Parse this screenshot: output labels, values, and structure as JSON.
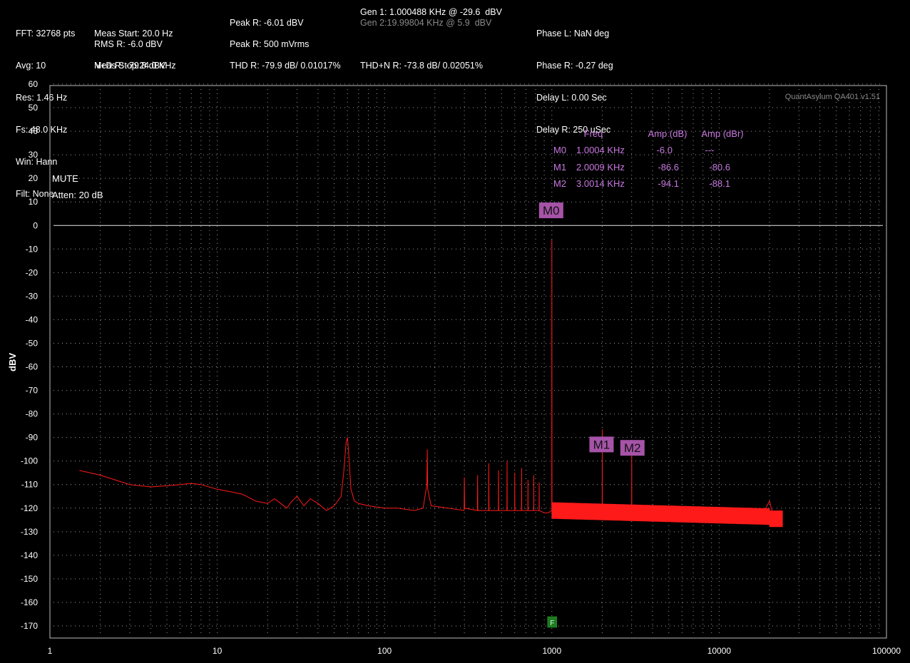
{
  "header": {
    "col1": [
      "FFT: 32768 pts",
      "Avg: 10",
      "Res: 1.46 Hz",
      "Fs: 48.0 KHz",
      "Win: Hann",
      "Filt: None"
    ],
    "col2": [
      "Meas Start: 20.0 Hz",
      "Meas Stop:24.0 KHz",
      "RMS R: -6.0 dBV",
      "N+D R: -79.8 dBV"
    ],
    "col3": [
      "Peak R: -6.01 dBV",
      "Peak R: 500 mVrms",
      "THD R: -79.9 dB/ 0.01017%"
    ],
    "gen1": "Gen 1: 1.000488 KHz @ -29.6  dBV",
    "gen2": "Gen 2:19.99804 KHz @ 5.9  dBV",
    "thdn": "THD+N R: -73.8 dB/ 0.02051%",
    "col5": [
      "Phase L: NaN deg",
      "Phase R: -0.27 deg",
      "Delay L: 0.00 Sec",
      "Delay R: 250 uSec"
    ]
  },
  "watermark": "QuantAsylum QA401 v1.51",
  "status": [
    "MUTE",
    "Atten: 20 dB"
  ],
  "marker_table": {
    "headers": [
      "Freq",
      "Amp (dB)",
      "Amp (dBr)"
    ],
    "rows": [
      {
        "marker": "M0",
        "freq": "1.0004 KHz",
        "amp": "-6.0",
        "ampr": "---"
      },
      {
        "marker": "M1",
        "freq": "2.0009 KHz",
        "amp": "-86.6",
        "ampr": "-80.6"
      },
      {
        "marker": "M2",
        "freq": "3.0014 KHz",
        "amp": "-94.1",
        "ampr": "-88.1"
      }
    ]
  },
  "f_marker_label": "F",
  "colors": {
    "trace": "#ff1a1a",
    "marker_bg": "#a653a8",
    "marker_text": "#c878e0",
    "f_marker": "#1f7a1f",
    "grid": "#9a9a9a"
  },
  "chart_data": {
    "type": "line",
    "title": "",
    "xlabel": "",
    "ylabel": "dBV",
    "xscale": "log",
    "xlim": [
      1,
      100000
    ],
    "ylim": [
      -175,
      60
    ],
    "x_ticks": [
      "1",
      "10",
      "100",
      "1000",
      "10000",
      "100000"
    ],
    "y_ticks": [
      60,
      50,
      40,
      30,
      20,
      10,
      0,
      -10,
      -20,
      -30,
      -40,
      -50,
      -60,
      -70,
      -80,
      -90,
      -100,
      -110,
      -120,
      -130,
      -140,
      -150,
      -160,
      -170
    ],
    "grid": true,
    "reference_line_dbv": 0,
    "series": [
      {
        "x": [
          1.5,
          2,
          3,
          4,
          5,
          6,
          7,
          8,
          10,
          12,
          14,
          15,
          17,
          20,
          22,
          24,
          26,
          28,
          30,
          33,
          36,
          40,
          45,
          50,
          55,
          57,
          59,
          60,
          61,
          63,
          66,
          70,
          80,
          100,
          120,
          150,
          170,
          179,
          180,
          181,
          190,
          240,
          299,
          300,
          301,
          359,
          360,
          361,
          419,
          420,
          421,
          479,
          480,
          481,
          539,
          540,
          541,
          599,
          600,
          601,
          659,
          660,
          661,
          719,
          720,
          721,
          779,
          780,
          781,
          839,
          840,
          841,
          900,
          950,
          999,
          1000.4,
          1002,
          1100,
          1300,
          1600,
          1999,
          2000.9,
          2003,
          2500,
          2999,
          3001.4,
          3004,
          3500,
          4000,
          5000,
          6000,
          8000,
          10000,
          12000,
          15000,
          18000,
          20000,
          21000,
          22000,
          24000
        ],
        "y": [
          -104,
          -106,
          -110,
          -111,
          -110.5,
          -110,
          -109.5,
          -110,
          -112,
          -113,
          -114,
          -115,
          -117,
          -118,
          -116,
          -118,
          -120,
          -117,
          -115,
          -119,
          -116,
          -118,
          -121,
          -119,
          -115,
          -105,
          -92,
          -90,
          -96,
          -112,
          -117,
          -118,
          -119,
          -120,
          -120,
          -121,
          -120,
          -110,
          -95,
          -112,
          -119,
          -120,
          -121,
          -107,
          -120,
          -121,
          -106,
          -121,
          -121,
          -101,
          -121,
          -121,
          -104,
          -121,
          -121,
          -100,
          -121,
          -121,
          -105,
          -121,
          -121,
          -103,
          -121,
          -121,
          -108,
          -121,
          -121,
          -106,
          -121,
          -121,
          -109,
          -121,
          -122,
          -122,
          -121,
          -6,
          -121,
          -122,
          -121,
          -122,
          -121,
          -86.6,
          -121,
          -122,
          -122,
          -94.1,
          -122,
          -122,
          -122,
          -122,
          -122,
          -122,
          -122,
          -123,
          -123,
          -123,
          -117,
          -123,
          -125,
          -125
        ]
      }
    ],
    "markers": [
      {
        "name": "M0",
        "x": 1000.4,
        "y": -6.0
      },
      {
        "name": "M1",
        "x": 2000.9,
        "y": -86.6
      },
      {
        "name": "M2",
        "x": 3001.4,
        "y": -94.1
      }
    ],
    "f_marker_x": 1000
  }
}
